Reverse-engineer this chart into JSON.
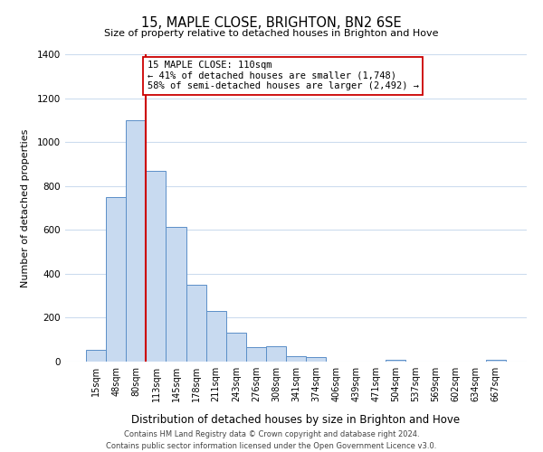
{
  "title": "15, MAPLE CLOSE, BRIGHTON, BN2 6SE",
  "subtitle": "Size of property relative to detached houses in Brighton and Hove",
  "xlabel": "Distribution of detached houses by size in Brighton and Hove",
  "ylabel": "Number of detached properties",
  "bar_labels": [
    "15sqm",
    "48sqm",
    "80sqm",
    "113sqm",
    "145sqm",
    "178sqm",
    "211sqm",
    "243sqm",
    "276sqm",
    "308sqm",
    "341sqm",
    "374sqm",
    "406sqm",
    "439sqm",
    "471sqm",
    "504sqm",
    "537sqm",
    "569sqm",
    "602sqm",
    "634sqm",
    "667sqm"
  ],
  "bar_heights": [
    55,
    750,
    1100,
    870,
    615,
    350,
    230,
    130,
    65,
    70,
    25,
    20,
    0,
    0,
    0,
    10,
    0,
    0,
    0,
    0,
    10
  ],
  "bar_color": "#c8daf0",
  "bar_edge_color": "#5b8fc8",
  "vline_x": 2.5,
  "vline_color": "#cc0000",
  "annotation_title": "15 MAPLE CLOSE: 110sqm",
  "annotation_line1": "← 41% of detached houses are smaller (1,748)",
  "annotation_line2": "58% of semi-detached houses are larger (2,492) →",
  "annotation_box_color": "#ffffff",
  "annotation_box_edge": "#cc0000",
  "ylim": [
    0,
    1400
  ],
  "yticks": [
    0,
    200,
    400,
    600,
    800,
    1000,
    1200,
    1400
  ],
  "footer_line1": "Contains HM Land Registry data © Crown copyright and database right 2024.",
  "footer_line2": "Contains public sector information licensed under the Open Government Licence v3.0.",
  "background_color": "#ffffff",
  "grid_color": "#ccdcee"
}
